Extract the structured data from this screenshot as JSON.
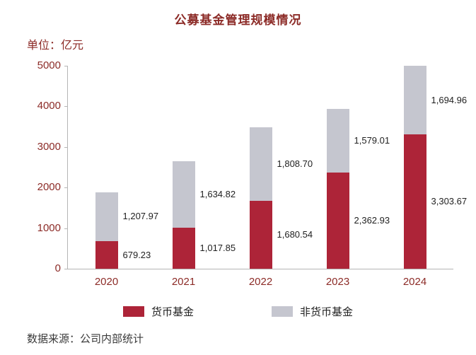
{
  "title": "公募基金管理规模情况",
  "unit_label": "单位：亿元",
  "source": "数据来源：公司内部统计",
  "colors": {
    "accent_text": "#8c2b27",
    "axis_line": "#b5b5b5",
    "value_label": "#1f1f1f"
  },
  "chart_data": {
    "type": "bar",
    "stacked": true,
    "title": "公募基金管理规模情况",
    "unit": "亿元",
    "categories": [
      "2020",
      "2021",
      "2022",
      "2023",
      "2024"
    ],
    "series": [
      {
        "name": "货币基金",
        "color": "#ad2438",
        "values": [
          679.23,
          1017.85,
          1680.54,
          2362.93,
          3303.67
        ],
        "labels": [
          "679.23",
          "1,017.85",
          "1,680.54",
          "2,362.93",
          "3,303.67"
        ]
      },
      {
        "name": "非货币基金",
        "color": "#c5c6cf",
        "values": [
          1207.97,
          1634.82,
          1808.7,
          1579.01,
          1694.96
        ],
        "labels": [
          "1,207.97",
          "1,634.82",
          "1,808.70",
          "1,579.01",
          "1,694.96"
        ]
      }
    ],
    "ylim": [
      0,
      5000
    ],
    "yticks": [
      0,
      1000,
      2000,
      3000,
      4000,
      5000
    ],
    "ytick_labels": [
      "0",
      "1000",
      "2000",
      "3000",
      "4000",
      "5000"
    ],
    "grid": false,
    "legend_position": "bottom"
  }
}
